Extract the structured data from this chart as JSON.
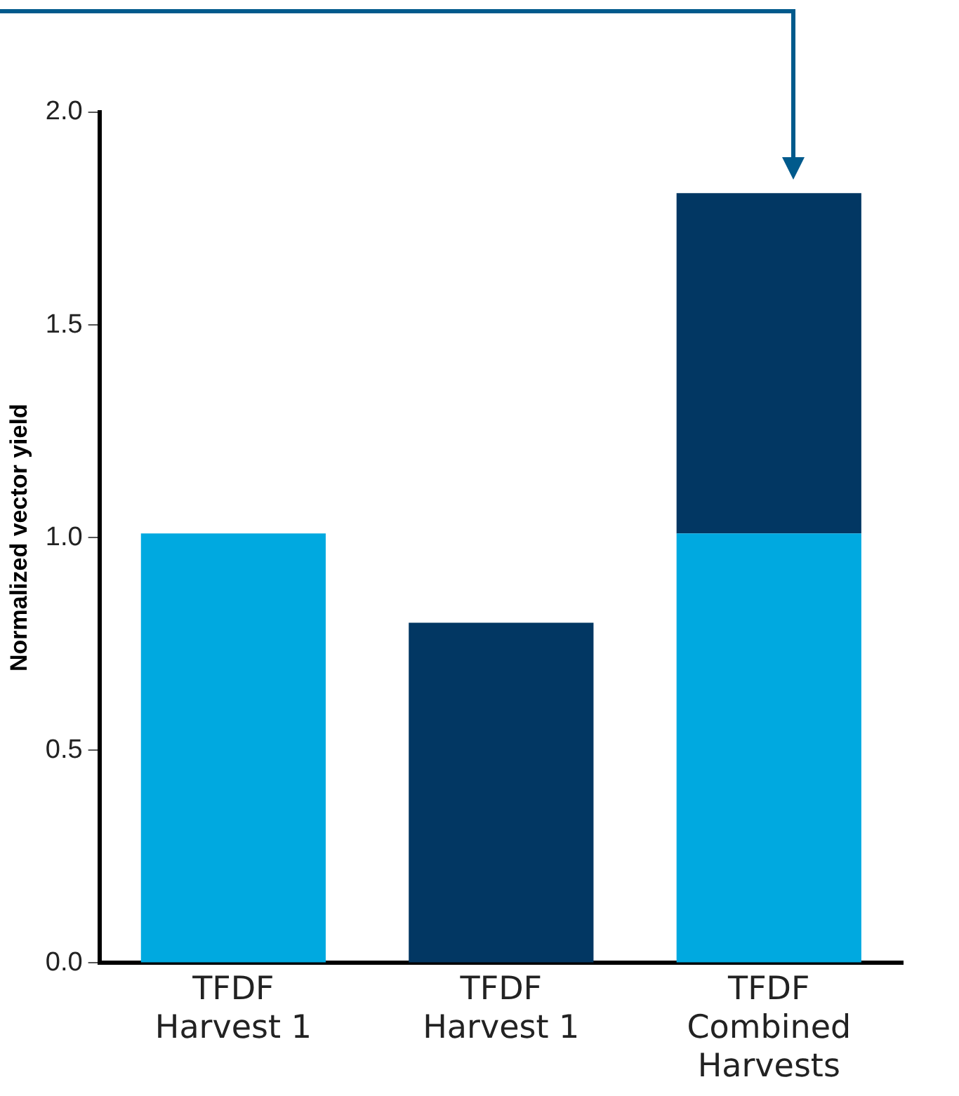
{
  "chart_data": {
    "type": "bar",
    "ylabel": "Normalized vector yield",
    "categories": [
      "TFDF\nHarvest 1",
      "TFDF\nHarvest 1",
      "TFDF\nCombined\nHarvests"
    ],
    "stacked": true,
    "series": [
      {
        "color": "#00a9e0",
        "values": [
          1.01,
          null,
          1.01
        ]
      },
      {
        "color": "#023763",
        "values": [
          null,
          0.8,
          0.8
        ]
      }
    ],
    "ylim": [
      0,
      2
    ],
    "yticks": [
      {
        "value": 0,
        "label": "0.0"
      },
      {
        "value": 0.5,
        "label": "0.5"
      },
      {
        "value": 1,
        "label": "1.0"
      },
      {
        "value": 1.5,
        "label": "1.5"
      },
      {
        "value": 2,
        "label": "2.0"
      }
    ],
    "grid": false,
    "legend": false
  }
}
